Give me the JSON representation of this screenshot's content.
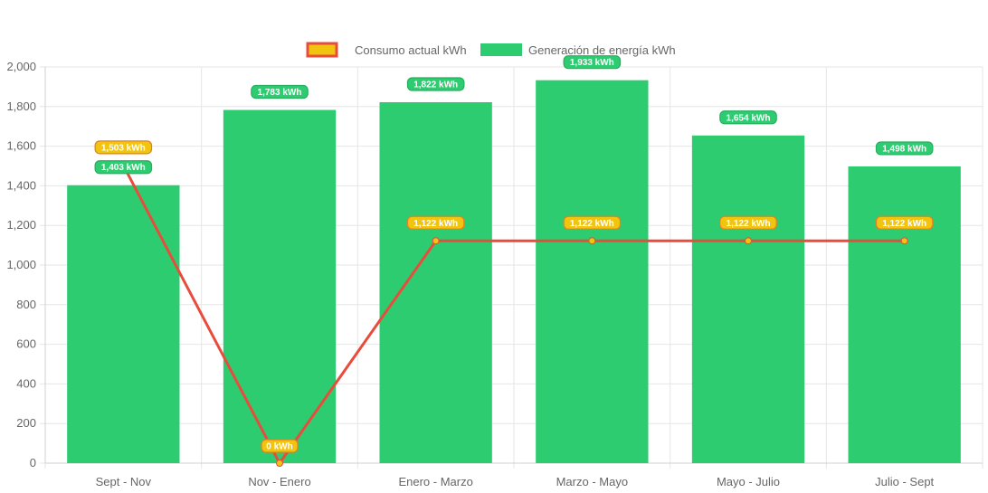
{
  "colors": {
    "generation": "#2ecc71",
    "consumption_line": "#e74c3c",
    "consumption_fill": "#f1c40f",
    "grid": "#e6e6e6",
    "text": "#666666"
  },
  "chart_data": {
    "type": "bar",
    "categories": [
      "Sept - Nov",
      "Nov - Enero",
      "Enero - Marzo",
      "Marzo - Mayo",
      "Mayo - Julio",
      "Julio - Sept"
    ],
    "series": [
      {
        "name": "Consumo actual kWh",
        "type": "line",
        "values": [
          1503,
          0,
          1122,
          1122,
          1122,
          1122
        ],
        "labels": [
          "1,503 kWh",
          "0 kWh",
          "1,122 kWh",
          "1,122 kWh",
          "1,122 kWh",
          "1,122 kWh"
        ]
      },
      {
        "name": "Generación de energía kWh",
        "type": "bar",
        "values": [
          1403,
          1783,
          1822,
          1933,
          1654,
          1498
        ],
        "labels": [
          "1,403 kWh",
          "1,783 kWh",
          "1,822 kWh",
          "1,933 kWh",
          "1,654 kWh",
          "1,498 kWh"
        ]
      }
    ],
    "ylim": [
      0,
      2000
    ],
    "yticks": [
      "0",
      "200",
      "400",
      "600",
      "800",
      "1,000",
      "1,200",
      "1,400",
      "1,600",
      "1,800",
      "2,000"
    ],
    "grid": true,
    "legend": "top-center"
  }
}
